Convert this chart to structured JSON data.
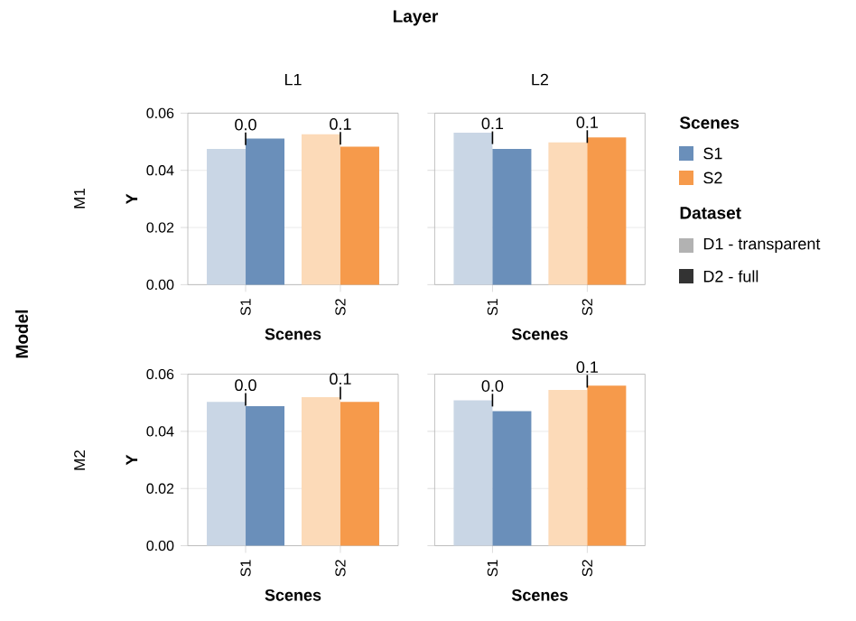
{
  "chart_data": [
    {
      "type": "bar",
      "title": "L1",
      "xlabel": "Scenes",
      "ylabel": "Y",
      "categories": [
        "S1",
        "S2"
      ],
      "series": [
        {
          "colors": [
            "#c9d6e5",
            "#fcdab8"
          ],
          "values": [
            0.0475,
            0.0526
          ]
        },
        {
          "colors": [
            "#6a8fba",
            "#f69a4b"
          ],
          "values": [
            0.0511,
            0.0483
          ]
        }
      ],
      "ylim": [
        0,
        0.06
      ],
      "yticks": [
        {
          "value": 0,
          "label": "0.00"
        },
        {
          "value": 0.02,
          "label": "0.02"
        },
        {
          "value": 0.04,
          "label": "0.04"
        },
        {
          "value": 0.06,
          "label": "0.06"
        }
      ],
      "grid": "y",
      "annotations": [
        "Layer",
        "Model",
        "M1",
        {
          "text": "0.0",
          "x": "S1",
          "y": 0.0488
        },
        {
          "text": "0.1",
          "x": "S2",
          "y": 0.049
        }
      ]
    },
    {
      "type": "bar",
      "title": "L2",
      "xlabel": "Scenes",
      "categories": [
        "S1",
        "S2"
      ],
      "series": [
        {
          "colors": [
            "#c9d6e5",
            "#fcdab8"
          ],
          "values": [
            0.0532,
            0.0498
          ]
        },
        {
          "colors": [
            "#6a8fba",
            "#f69a4b"
          ],
          "values": [
            0.0475,
            0.0515
          ]
        }
      ],
      "ylim": [
        0,
        0.06
      ],
      "yticks": [
        {
          "value": 0,
          "label": null
        },
        {
          "value": 0.02,
          "label": null
        },
        {
          "value": 0.04,
          "label": null
        },
        {
          "value": 0.06,
          "label": null
        }
      ],
      "grid": "y",
      "tick_labels": "x",
      "legend_title": "Scenes",
      "annotations": [
        "Dataset",
        "D1 - transparent",
        "D2 - full",
        {
          "text": "0.1",
          "x": "S1",
          "y": 0.0492
        },
        {
          "text": "0.1",
          "x": "S2",
          "y": 0.0496
        }
      ]
    },
    {
      "type": "bar",
      "xlabel": "Scenes",
      "ylabel": "Y",
      "categories": [
        "S1",
        "S2"
      ],
      "series": [
        {
          "colors": [
            "#c9d6e5",
            "#fcdab8"
          ],
          "values": [
            0.0503,
            0.052
          ]
        },
        {
          "colors": [
            "#6a8fba",
            "#f69a4b"
          ],
          "values": [
            0.0488,
            0.0503
          ]
        }
      ],
      "ylim": [
        0,
        0.06
      ],
      "yticks": [
        {
          "value": 0,
          "label": "0.00"
        },
        {
          "value": 0.02,
          "label": "0.02"
        },
        {
          "value": 0.04,
          "label": "0.04"
        },
        {
          "value": 0.06,
          "label": "0.06"
        }
      ],
      "grid": "y",
      "annotations": [
        "M2",
        {
          "text": "0.0",
          "x": "S1",
          "y": 0.049
        },
        {
          "text": "0.1",
          "x": "S2",
          "y": 0.0512
        }
      ]
    },
    {
      "type": "bar",
      "xlabel": "Scenes",
      "categories": [
        "S1",
        "S2"
      ],
      "series": [
        {
          "colors": [
            "#c9d6e5",
            "#fcdab8"
          ],
          "values": [
            0.0509,
            0.0545
          ]
        },
        {
          "colors": [
            "#6a8fba",
            "#f69a4b"
          ],
          "values": [
            0.0471,
            0.056
          ]
        }
      ],
      "ylim": [
        0,
        0.06
      ],
      "yticks": [
        {
          "value": 0,
          "label": null
        },
        {
          "value": 0.02,
          "label": null
        },
        {
          "value": 0.04,
          "label": null
        },
        {
          "value": 0.06,
          "label": null
        }
      ],
      "grid": "y",
      "tick_labels": "x",
      "annotations": [
        {
          "text": "0.0",
          "x": "S1",
          "y": 0.0487
        },
        {
          "text": "0.1",
          "x": "S2",
          "y": 0.0553
        }
      ]
    }
  ]
}
